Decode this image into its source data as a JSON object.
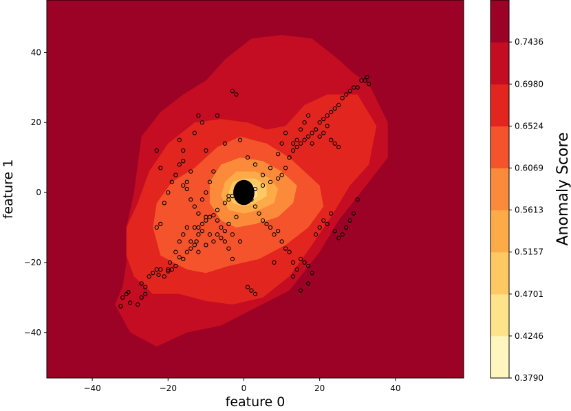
{
  "chart_data": {
    "type": "contour",
    "xlabel": "feature 0",
    "ylabel": "feature 1",
    "xlim": [
      -52,
      58
    ],
    "ylim": [
      -53,
      55
    ],
    "xticks": [
      -40,
      -20,
      0,
      20,
      40
    ],
    "yticks": [
      -40,
      -20,
      0,
      20,
      40
    ],
    "grid": false,
    "colorbar": {
      "label": "Anomaly Score",
      "levels": [
        0.379,
        0.4246,
        0.4701,
        0.5157,
        0.5613,
        0.6069,
        0.6524,
        0.698,
        0.7436,
        0.7892
      ],
      "tick_labels": [
        "0.3790",
        "0.4246",
        "0.4701",
        "0.5157",
        "0.5613",
        "0.6069",
        "0.6524",
        "0.6980",
        "0.7436"
      ],
      "colors": [
        "#fff6bf",
        "#ffe38a",
        "#fec962",
        "#fdaa48",
        "#fc8a3b",
        "#f4532b",
        "#e2251e",
        "#c40c22",
        "#9c0225"
      ]
    },
    "contours": [
      {
        "level_index": 8,
        "color": "#9c0225",
        "fill_whole_plot": true
      },
      {
        "level_index": 7,
        "color": "#c40c22",
        "polygon": [
          [
            -23,
            -44
          ],
          [
            -30,
            -40
          ],
          [
            -34,
            -32
          ],
          [
            -32,
            -27
          ],
          [
            -31,
            -20
          ],
          [
            -31,
            -10
          ],
          [
            -29,
            0
          ],
          [
            -28,
            8
          ],
          [
            -27,
            16
          ],
          [
            -22,
            23
          ],
          [
            -16,
            28
          ],
          [
            -10,
            32
          ],
          [
            -5,
            38
          ],
          [
            2,
            44
          ],
          [
            10,
            45
          ],
          [
            18,
            44
          ],
          [
            25,
            38
          ],
          [
            29,
            34
          ],
          [
            33,
            31
          ],
          [
            38,
            20
          ],
          [
            38,
            10
          ],
          [
            33,
            3
          ],
          [
            25,
            -8
          ],
          [
            20,
            -17
          ],
          [
            12,
            -28
          ],
          [
            3,
            -33
          ],
          [
            -6,
            -38
          ],
          [
            -15,
            -40
          ]
        ]
      },
      {
        "level_index": 6,
        "color": "#e2251e",
        "polygon": [
          [
            -24,
            -29
          ],
          [
            -29,
            -24
          ],
          [
            -31,
            -18
          ],
          [
            -31,
            -10
          ],
          [
            -28,
            -3
          ],
          [
            -25,
            6
          ],
          [
            -20,
            14
          ],
          [
            -13,
            20
          ],
          [
            -6,
            21
          ],
          [
            1,
            20
          ],
          [
            6,
            18
          ],
          [
            11,
            19
          ],
          [
            16,
            25
          ],
          [
            22,
            28
          ],
          [
            30,
            28
          ],
          [
            35,
            19
          ],
          [
            33,
            8
          ],
          [
            28,
            2
          ],
          [
            23,
            -7
          ],
          [
            18,
            -15
          ],
          [
            12,
            -24
          ],
          [
            5,
            -30
          ],
          [
            -3,
            -32
          ],
          [
            -10,
            -31
          ],
          [
            -17,
            -29
          ]
        ]
      },
      {
        "level_index": 5,
        "color": "#f4532b",
        "polygon": [
          [
            -15,
            -22
          ],
          [
            -22,
            -18
          ],
          [
            -24,
            -10
          ],
          [
            -23,
            -3
          ],
          [
            -19,
            3
          ],
          [
            -13,
            7
          ],
          [
            -7,
            13
          ],
          [
            -1,
            16
          ],
          [
            6,
            14
          ],
          [
            12,
            10
          ],
          [
            16,
            6
          ],
          [
            20,
            2
          ],
          [
            21,
            -4
          ],
          [
            17,
            -10
          ],
          [
            11,
            -15
          ],
          [
            4,
            -19
          ],
          [
            -4,
            -21
          ],
          [
            -10,
            -23
          ]
        ]
      },
      {
        "level_index": 4,
        "color": "#fc8a3b",
        "polygon": [
          [
            -6,
            -8
          ],
          [
            -9,
            -3
          ],
          [
            -9,
            3
          ],
          [
            -6,
            8
          ],
          [
            -1,
            10
          ],
          [
            5,
            9
          ],
          [
            10,
            6
          ],
          [
            14,
            2
          ],
          [
            13,
            -3
          ],
          [
            9,
            -7
          ],
          [
            3,
            -9
          ],
          [
            -2,
            -10
          ]
        ]
      },
      {
        "level_index": 3,
        "color": "#fdaa48",
        "polygon": [
          [
            -4,
            -5
          ],
          [
            -6,
            -1
          ],
          [
            -5,
            3
          ],
          [
            -2,
            6
          ],
          [
            3,
            6
          ],
          [
            7,
            4
          ],
          [
            9,
            1
          ],
          [
            8,
            -3
          ],
          [
            4,
            -5
          ],
          [
            0,
            -6
          ]
        ]
      },
      {
        "level_index": 2,
        "color": "#fec962",
        "polygon": [
          [
            -3,
            -3
          ],
          [
            -4,
            0
          ],
          [
            -3,
            3
          ],
          [
            0,
            4
          ],
          [
            3,
            4
          ],
          [
            6,
            2
          ],
          [
            6,
            -1
          ],
          [
            3,
            -3
          ],
          [
            0,
            -4
          ]
        ]
      },
      {
        "level_index": 1,
        "color": "#ffe38a",
        "polygon": [
          [
            -2,
            -2
          ],
          [
            -2.5,
            0.5
          ],
          [
            -1,
            2.5
          ],
          [
            1.5,
            2.8
          ],
          [
            3.5,
            1.5
          ],
          [
            3.5,
            -1
          ],
          [
            1.5,
            -2.5
          ]
        ]
      }
    ],
    "cluster": {
      "cx": 0,
      "cy": 0,
      "rx": 2.8,
      "ry": 3.6,
      "color": "#000000"
    },
    "scatter": {
      "marker": "open-circle",
      "points": [
        [
          -32.5,
          -32.5
        ],
        [
          -32,
          -30
        ],
        [
          -31,
          -29
        ],
        [
          -30.5,
          -28.5
        ],
        [
          -30,
          -31.5
        ],
        [
          -28,
          -32
        ],
        [
          -27,
          -30
        ],
        [
          -26,
          -29
        ],
        [
          -27,
          -26
        ],
        [
          -26,
          -27
        ],
        [
          -25,
          -24
        ],
        [
          -24,
          -23
        ],
        [
          -23,
          -22
        ],
        [
          -22,
          -22
        ],
        [
          -22.5,
          -23.5
        ],
        [
          -21,
          -24
        ],
        [
          -20,
          -22.5
        ],
        [
          -19,
          -22
        ],
        [
          -19.5,
          -20
        ],
        [
          -18,
          -21
        ],
        [
          -17,
          -18.5
        ],
        [
          -16,
          -19
        ],
        [
          -15,
          -17
        ],
        [
          -14,
          -16
        ],
        [
          -13,
          -15
        ],
        [
          -12.5,
          -14
        ],
        [
          -12,
          -12
        ],
        [
          -12,
          -10
        ],
        [
          -11,
          -9
        ],
        [
          -10,
          -8
        ],
        [
          -10,
          -7
        ],
        [
          -9,
          -7
        ],
        [
          -8,
          -6.5
        ],
        [
          -7,
          -5
        ],
        [
          -5,
          -3
        ],
        [
          -4,
          -2
        ],
        [
          -3,
          -1
        ],
        [
          3,
          1
        ],
        [
          5,
          2
        ],
        [
          7,
          3
        ],
        [
          9,
          4
        ],
        [
          10,
          5
        ],
        [
          11,
          7
        ],
        [
          12,
          10
        ],
        [
          13,
          12
        ],
        [
          14,
          13
        ],
        [
          15,
          14
        ],
        [
          16,
          15
        ],
        [
          17,
          16
        ],
        [
          18,
          17
        ],
        [
          19,
          18
        ],
        [
          20,
          20
        ],
        [
          21,
          21
        ],
        [
          22,
          22
        ],
        [
          23,
          23
        ],
        [
          24,
          24
        ],
        [
          25,
          25
        ],
        [
          26,
          27
        ],
        [
          27,
          28
        ],
        [
          28,
          29
        ],
        [
          29,
          30
        ],
        [
          30,
          30
        ],
        [
          31,
          32
        ],
        [
          32,
          32
        ],
        [
          32.5,
          33
        ],
        [
          33,
          31
        ],
        [
          -23,
          12
        ],
        [
          -22,
          7
        ],
        [
          -17,
          15
        ],
        [
          -16,
          12
        ],
        [
          -16,
          9
        ],
        [
          -15,
          3
        ],
        [
          -14,
          6
        ],
        [
          -13,
          17
        ],
        [
          -12,
          22
        ],
        [
          -11,
          20
        ],
        [
          -10,
          12
        ],
        [
          -7,
          22
        ],
        [
          -5,
          14
        ],
        [
          -4,
          -1
        ],
        [
          -3,
          29
        ],
        [
          -2,
          28
        ],
        [
          -1,
          15
        ],
        [
          1,
          10
        ],
        [
          3,
          8
        ],
        [
          5,
          5
        ],
        [
          7,
          7
        ],
        [
          9,
          11
        ],
        [
          10,
          14
        ],
        [
          11,
          17
        ],
        [
          12,
          10
        ],
        [
          13,
          14
        ],
        [
          14,
          15
        ],
        [
          15,
          18
        ],
        [
          16,
          20
        ],
        [
          17,
          22
        ],
        [
          18,
          14
        ],
        [
          19,
          18
        ],
        [
          20,
          16
        ],
        [
          21,
          17
        ],
        [
          22,
          19
        ],
        [
          23,
          15
        ],
        [
          24,
          14
        ],
        [
          25,
          13
        ],
        [
          -23,
          -10
        ],
        [
          -20,
          -22
        ],
        [
          -18,
          -17
        ],
        [
          -17,
          -14
        ],
        [
          -16,
          -12
        ],
        [
          -15,
          -10
        ],
        [
          -14,
          -14
        ],
        [
          -13,
          -10
        ],
        [
          -12,
          -17
        ],
        [
          -11,
          -11
        ],
        [
          -10,
          -15
        ],
        [
          -9,
          -12
        ],
        [
          -8,
          -14
        ],
        [
          -7,
          -8
        ],
        [
          -6,
          -10
        ],
        [
          -5,
          -14
        ],
        [
          -4,
          -9
        ],
        [
          -3,
          -12
        ],
        [
          -2,
          -7
        ],
        [
          -1,
          -14
        ],
        [
          1,
          -1
        ],
        [
          2,
          -2
        ],
        [
          3,
          -4
        ],
        [
          4,
          -6
        ],
        [
          5,
          -8
        ],
        [
          6,
          -9
        ],
        [
          7,
          -10
        ],
        [
          8,
          -12
        ],
        [
          9,
          -11
        ],
        [
          10,
          -14
        ],
        [
          11,
          -16
        ],
        [
          12,
          -17
        ],
        [
          13,
          -20
        ],
        [
          14,
          -22
        ],
        [
          15,
          -19
        ],
        [
          16,
          -20
        ],
        [
          17,
          -21
        ],
        [
          18,
          -23
        ],
        [
          19,
          -12
        ],
        [
          20,
          -10
        ],
        [
          21,
          -8
        ],
        [
          22,
          -9
        ],
        [
          23,
          -6
        ],
        [
          24,
          -11
        ],
        [
          25,
          -13
        ],
        [
          26,
          -12
        ],
        [
          27,
          -10
        ],
        [
          28,
          -8
        ],
        [
          29,
          -6
        ],
        [
          30,
          -2
        ],
        [
          -22,
          -9
        ],
        [
          -21,
          -3
        ],
        [
          -20,
          0
        ],
        [
          -19,
          3
        ],
        [
          -18,
          5
        ],
        [
          -17,
          8
        ],
        [
          -16,
          2
        ],
        [
          -15,
          1
        ],
        [
          -14,
          -2
        ],
        [
          -13,
          -4
        ],
        [
          -12,
          -6
        ],
        [
          -11,
          -2
        ],
        [
          -10,
          0
        ],
        [
          -9,
          3
        ],
        [
          -8,
          6
        ],
        [
          -7,
          -12
        ],
        [
          -6,
          -13
        ],
        [
          -5,
          -11
        ],
        [
          -4,
          -16
        ],
        [
          -3,
          -19
        ],
        [
          1,
          -27
        ],
        [
          2,
          -28
        ],
        [
          3,
          -29
        ],
        [
          8,
          -20
        ],
        [
          13,
          -24
        ],
        [
          15,
          -28
        ],
        [
          17,
          -26
        ]
      ]
    }
  }
}
